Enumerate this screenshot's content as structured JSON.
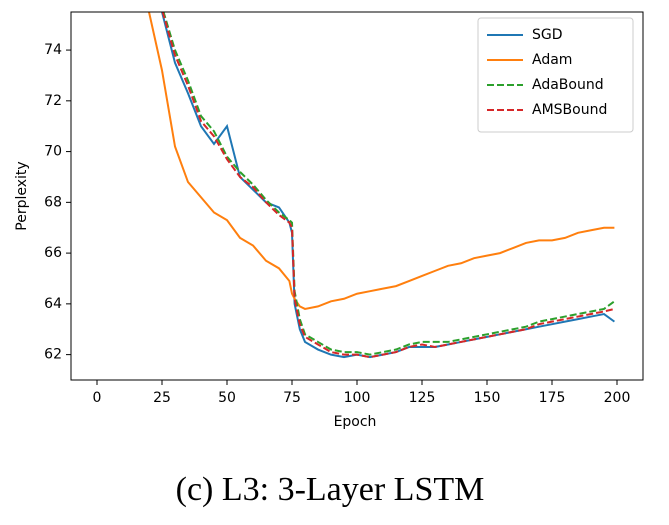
{
  "chart_data": {
    "type": "line",
    "caption": "(c) L3: 3-Layer LSTM",
    "x_label": "Epoch",
    "y_label": "Perplexity",
    "x": [
      20,
      25,
      30,
      35,
      40,
      45,
      50,
      55,
      60,
      65,
      70,
      74,
      75,
      76,
      78,
      80,
      85,
      90,
      95,
      100,
      105,
      110,
      115,
      120,
      125,
      130,
      135,
      140,
      145,
      150,
      155,
      160,
      165,
      170,
      175,
      180,
      185,
      190,
      195,
      199
    ],
    "series": [
      {
        "name": "SGD",
        "color": "#1f77b4",
        "linestyle": "solid",
        "values": [
          77,
          75.5,
          73.5,
          72.3,
          71.0,
          70.3,
          71.0,
          69.0,
          68.5,
          68.0,
          67.8,
          67.2,
          66.8,
          64.0,
          63.0,
          62.5,
          62.2,
          62.0,
          61.9,
          62.0,
          61.9,
          62.0,
          62.1,
          62.3,
          62.3,
          62.3,
          62.4,
          62.5,
          62.6,
          62.7,
          62.8,
          62.9,
          63.0,
          63.1,
          63.2,
          63.3,
          63.4,
          63.5,
          63.6,
          63.3
        ]
      },
      {
        "name": "Adam",
        "color": "#ff7f0e",
        "linestyle": "solid",
        "values": [
          75.5,
          73.2,
          70.2,
          68.8,
          68.2,
          67.6,
          67.3,
          66.6,
          66.3,
          65.7,
          65.4,
          64.9,
          64.4,
          64.2,
          63.9,
          63.8,
          63.9,
          64.1,
          64.2,
          64.4,
          64.5,
          64.6,
          64.7,
          64.9,
          65.1,
          65.3,
          65.5,
          65.6,
          65.8,
          65.9,
          66.0,
          66.2,
          66.4,
          66.5,
          66.5,
          66.6,
          66.8,
          66.9,
          67.0,
          67.0
        ]
      },
      {
        "name": "AdaBound",
        "color": "#2ca02c",
        "linestyle": "dashed",
        "values": [
          77,
          75.7,
          74.0,
          72.8,
          71.4,
          70.8,
          69.8,
          69.2,
          68.7,
          68.1,
          67.6,
          67.3,
          67.2,
          64.5,
          63.4,
          62.8,
          62.5,
          62.2,
          62.1,
          62.1,
          62.0,
          62.1,
          62.2,
          62.4,
          62.5,
          62.5,
          62.5,
          62.6,
          62.7,
          62.8,
          62.9,
          63.0,
          63.1,
          63.3,
          63.4,
          63.5,
          63.6,
          63.7,
          63.8,
          64.1
        ]
      },
      {
        "name": "AMSBound",
        "color": "#d62728",
        "linestyle": "dashed",
        "values": [
          77,
          75.6,
          73.8,
          72.6,
          71.2,
          70.6,
          69.7,
          69.0,
          68.6,
          68.0,
          67.5,
          67.2,
          67.0,
          64.2,
          63.2,
          62.7,
          62.4,
          62.1,
          62.0,
          62.0,
          61.9,
          62.0,
          62.1,
          62.3,
          62.4,
          62.3,
          62.4,
          62.5,
          62.6,
          62.7,
          62.8,
          62.9,
          63.0,
          63.2,
          63.3,
          63.4,
          63.5,
          63.6,
          63.7,
          63.8
        ]
      }
    ],
    "xlim": [
      -10,
      210
    ],
    "xticks": [
      0,
      25,
      50,
      75,
      100,
      125,
      150,
      175,
      200
    ],
    "ylim": [
      61.0,
      75.5
    ],
    "yticks": [
      62,
      64,
      66,
      68,
      70,
      72,
      74
    ],
    "grid": false,
    "legend": "upper right"
  }
}
